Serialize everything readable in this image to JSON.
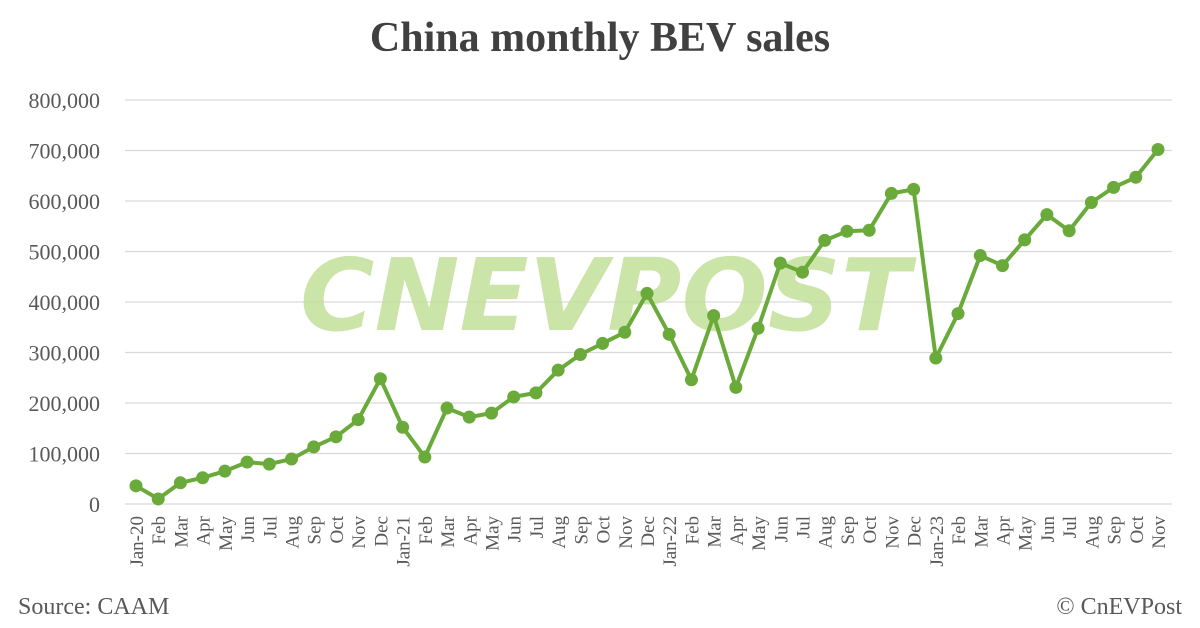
{
  "title": "China monthly BEV sales",
  "source": "Source: CAAM",
  "copyright": "© CnEVPost",
  "watermark": "CNEVPOST",
  "colors": {
    "line": "#6aaa3a",
    "marker": "#6aaa3a",
    "grid": "#d9d9d9",
    "axis_text": "#595959",
    "watermark": "#c3e09a"
  },
  "chart_data": {
    "type": "line",
    "title": "China monthly BEV sales",
    "xlabel": "",
    "ylabel": "",
    "ylim": [
      0,
      800000
    ],
    "yticks": [
      0,
      100000,
      200000,
      300000,
      400000,
      500000,
      600000,
      700000,
      800000
    ],
    "ytick_labels": [
      "0",
      "100,000",
      "200,000",
      "300,000",
      "400,000",
      "500,000",
      "600,000",
      "700,000",
      "800,000"
    ],
    "grid": true,
    "legend": "none",
    "categories": [
      "Jan-20",
      "Feb",
      "Mar",
      "Apr",
      "May",
      "Jun",
      "Jul",
      "Aug",
      "Sep",
      "Oct",
      "Nov",
      "Dec",
      "Jan-21",
      "Feb",
      "Mar",
      "Apr",
      "May",
      "Jun",
      "Jul",
      "Aug",
      "Sep",
      "Oct",
      "Nov",
      "Dec",
      "Jan-22",
      "Feb",
      "Mar",
      "Apr",
      "May",
      "Jun",
      "Jul",
      "Aug",
      "Sep",
      "Oct",
      "Nov",
      "Dec",
      "Jan-23",
      "Feb",
      "Mar",
      "Apr",
      "May",
      "Jun",
      "Jul",
      "Aug",
      "Sep",
      "Oct",
      "Nov"
    ],
    "series": [
      {
        "values": [
          36000,
          10000,
          42000,
          52000,
          65000,
          83000,
          79000,
          89000,
          113000,
          133000,
          167000,
          248000,
          152000,
          93000,
          190000,
          172000,
          180000,
          212000,
          220000,
          265000,
          296000,
          318000,
          340000,
          417000,
          336000,
          246000,
          373000,
          231000,
          348000,
          477000,
          459000,
          522000,
          540000,
          542000,
          615000,
          623000,
          289000,
          377000,
          492000,
          472000,
          523000,
          573000,
          541000,
          597000,
          627000,
          647000,
          702000
        ]
      }
    ]
  }
}
